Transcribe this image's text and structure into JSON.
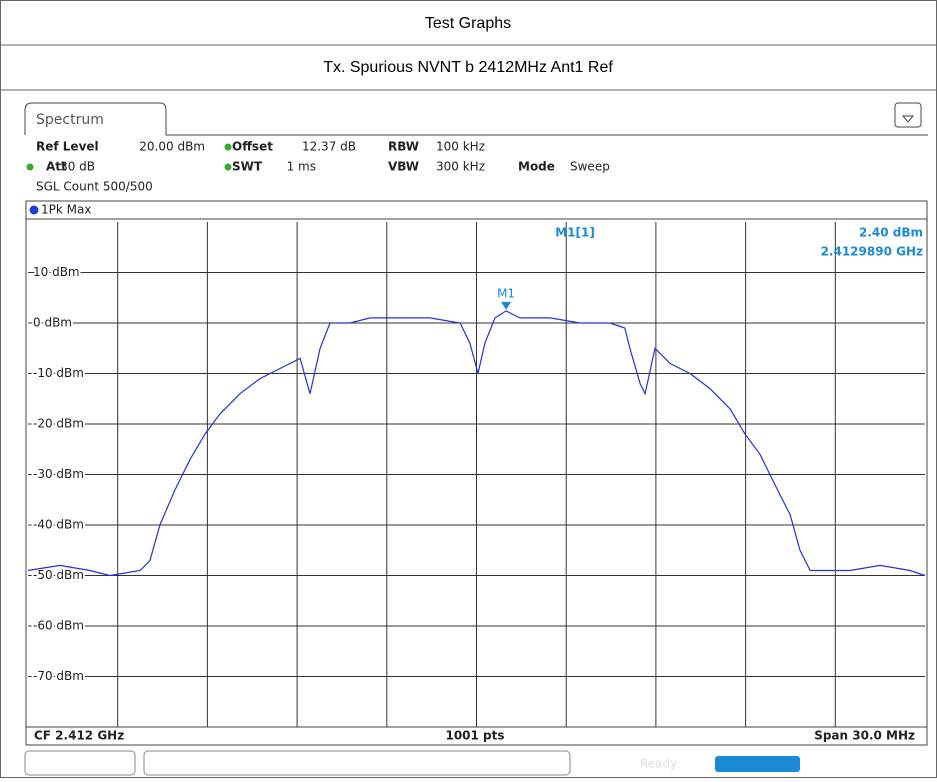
{
  "header": {
    "title": "Test Graphs",
    "subtitle": "Tx. Spurious NVNT b 2412MHz Ant1 Ref"
  },
  "panel": {
    "tab": "Spectrum",
    "settings": [
      {
        "label": "Ref Level",
        "value": "20.00 dBm"
      },
      {
        "label": "Offset",
        "value": "12.37 dB"
      },
      {
        "label": "RBW",
        "value": "100 kHz"
      },
      {
        "label": "Att",
        "value": "30 dB"
      },
      {
        "label": "SWT",
        "value": "1 ms"
      },
      {
        "label": "VBW",
        "value": "300 kHz"
      },
      {
        "label": "Mode",
        "value": "Sweep"
      }
    ],
    "count": "SGL Count 500/500",
    "footer": {
      "left": "CF 2.412 GHz",
      "center": "1001 pts",
      "right": "Span 30.0 MHz"
    },
    "status": "Ready"
  },
  "chart_data": {
    "type": "line",
    "xlim": [
      2397,
      2427
    ],
    "ylim": [
      -80,
      20
    ],
    "yticks": [
      {
        "value": 10,
        "label": "10 dBm"
      },
      {
        "value": 0,
        "label": "0 dBm"
      },
      {
        "value": -10,
        "label": "-10 dBm"
      },
      {
        "value": -20,
        "label": "-20 dBm"
      },
      {
        "value": -30,
        "label": "-30 dBm"
      },
      {
        "value": -40,
        "label": "-40 dBm"
      },
      {
        "value": -50,
        "label": "-50 dBm"
      },
      {
        "value": -60,
        "label": "-60 dBm"
      },
      {
        "value": -70,
        "label": "-70 dBm"
      }
    ],
    "grid": true,
    "x": [
      2397.0,
      2398.07,
      2399.07,
      2399.74,
      2400.75,
      2401.08,
      2401.41,
      2401.92,
      2402.42,
      2402.92,
      2403.42,
      2404.09,
      2404.76,
      2405.43,
      2406.1,
      2406.43,
      2406.77,
      2407.1,
      2407.77,
      2408.44,
      2409.44,
      2410.44,
      2411.45,
      2411.78,
      2412.05,
      2412.28,
      2412.62,
      2412.99,
      2413.45,
      2414.46,
      2415.46,
      2416.46,
      2416.96,
      2417.13,
      2417.47,
      2417.64,
      2417.97,
      2418.47,
      2419.14,
      2419.81,
      2420.48,
      2420.98,
      2421.48,
      2421.98,
      2422.49,
      2422.82,
      2423.16,
      2424.49,
      2425.5,
      2426.5,
      2427.0
    ],
    "series": [
      {
        "name": "1Pk Max",
        "color": "#2233d6",
        "values": [
          -49,
          -48,
          -49,
          -50,
          -49,
          -47,
          -40,
          -33,
          -27,
          -22,
          -18,
          -14,
          -11,
          -9,
          -7,
          -14,
          -5,
          0,
          0,
          1,
          1,
          1,
          0,
          -4,
          -10,
          -4,
          1,
          2.4,
          1,
          1,
          0,
          0,
          -1,
          -5,
          -12,
          -14,
          -5,
          -8,
          -10,
          -13,
          -17,
          -22,
          -26,
          -32,
          -38,
          -45,
          -49,
          -49,
          -48,
          -49,
          -50
        ]
      }
    ],
    "marker": {
      "name": "M1",
      "readout": "M1[1]",
      "x": 2412.989,
      "value": 2.4,
      "value_label": "2.40 dBm",
      "x_label": "2.4129890 GHz"
    }
  }
}
